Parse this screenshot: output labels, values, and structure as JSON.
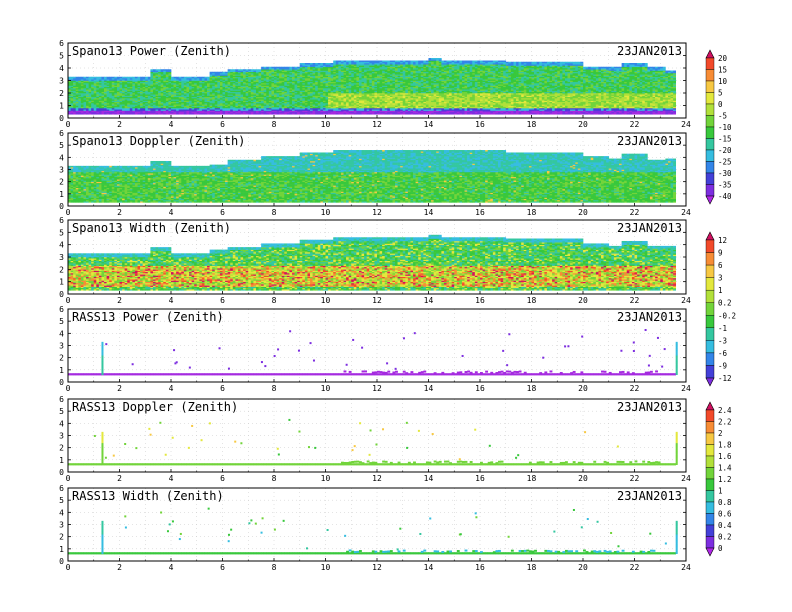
{
  "chart_data": [
    {
      "type": "heatmap",
      "title": "Spano13 Power (Zenith)",
      "date": "23JAN2013",
      "xlim": [
        0,
        24
      ],
      "ylim": [
        0,
        6
      ],
      "x_ticks": [
        "0",
        "2",
        "4",
        "6",
        "8",
        "10",
        "12",
        "14",
        "16",
        "18",
        "20",
        "22",
        "24"
      ],
      "y_ticks": [
        "0",
        "1",
        "2",
        "3",
        "4",
        "5",
        "6"
      ],
      "grid": true,
      "colorbar": "power",
      "field": "power",
      "top_profile": [
        [
          0,
          3.2
        ],
        [
          3.2,
          3.9
        ],
        [
          4.0,
          3.2
        ],
        [
          5.5,
          3.6
        ],
        [
          6.2,
          3.9
        ],
        [
          7.5,
          4.1
        ],
        [
          9.0,
          4.3
        ],
        [
          10.3,
          4.5
        ],
        [
          13.5,
          4.5
        ],
        [
          14.0,
          4.8
        ],
        [
          14.5,
          4.5
        ],
        [
          17.0,
          4.4
        ],
        [
          20.0,
          4.1
        ],
        [
          21.0,
          4.0
        ],
        [
          21.5,
          4.3
        ],
        [
          22.5,
          4.0
        ],
        [
          23.2,
          3.8
        ],
        [
          23.8,
          3.8
        ]
      ]
    },
    {
      "type": "heatmap",
      "title": "Spano13 Doppler (Zenith)",
      "date": "23JAN2013",
      "xlim": [
        0,
        24
      ],
      "ylim": [
        0,
        6
      ],
      "x_ticks": [
        "0",
        "2",
        "4",
        "6",
        "8",
        "10",
        "12",
        "14",
        "16",
        "18",
        "20",
        "22",
        "24"
      ],
      "y_ticks": [
        "0",
        "1",
        "2",
        "3",
        "4",
        "5",
        "6"
      ],
      "grid": true,
      "colorbar": "power",
      "field": "doppler",
      "top_profile": [
        [
          0,
          3.2
        ],
        [
          3.2,
          3.6
        ],
        [
          4.0,
          3.2
        ],
        [
          5.5,
          3.4
        ],
        [
          6.2,
          3.7
        ],
        [
          7.5,
          4.1
        ],
        [
          9.0,
          4.3
        ],
        [
          10.3,
          4.5
        ],
        [
          13.5,
          4.5
        ],
        [
          14.0,
          4.6
        ],
        [
          14.5,
          4.5
        ],
        [
          17.0,
          4.3
        ],
        [
          20.0,
          4.1
        ],
        [
          21.0,
          3.9
        ],
        [
          21.5,
          4.2
        ],
        [
          22.5,
          3.8
        ],
        [
          23.2,
          3.9
        ],
        [
          23.8,
          3.9
        ]
      ]
    },
    {
      "type": "heatmap",
      "title": "Spano13 Width (Zenith)",
      "date": "23JAN2013",
      "xlim": [
        0,
        24
      ],
      "ylim": [
        0,
        6
      ],
      "x_ticks": [
        "0",
        "2",
        "4",
        "6",
        "8",
        "10",
        "12",
        "14",
        "16",
        "18",
        "20",
        "22",
        "24"
      ],
      "y_ticks": [
        "0",
        "1",
        "2",
        "3",
        "4",
        "5",
        "6"
      ],
      "grid": true,
      "colorbar": "width",
      "field": "width",
      "top_profile": [
        [
          0,
          3.2
        ],
        [
          3.2,
          3.7
        ],
        [
          4.0,
          3.2
        ],
        [
          5.5,
          3.5
        ],
        [
          6.2,
          3.8
        ],
        [
          7.5,
          4.1
        ],
        [
          9.0,
          4.3
        ],
        [
          10.3,
          4.5
        ],
        [
          13.5,
          4.5
        ],
        [
          14.0,
          4.7
        ],
        [
          14.5,
          4.5
        ],
        [
          17.0,
          4.4
        ],
        [
          20.0,
          4.1
        ],
        [
          21.0,
          3.9
        ],
        [
          21.5,
          4.2
        ],
        [
          22.5,
          3.9
        ],
        [
          23.2,
          3.9
        ],
        [
          23.8,
          3.9
        ]
      ]
    },
    {
      "type": "scatter",
      "title": "RASS13 Power (Zenith)",
      "date": "23JAN2013",
      "xlim": [
        0,
        24
      ],
      "ylim": [
        0,
        6
      ],
      "x_ticks": [
        "0",
        "2",
        "4",
        "6",
        "8",
        "10",
        "12",
        "14",
        "16",
        "18",
        "20",
        "22",
        "24"
      ],
      "y_ticks": [
        "0",
        "1",
        "2",
        "3",
        "4",
        "5",
        "6"
      ],
      "grid": true,
      "colorbar": "width",
      "field": "rass_power",
      "baseline_height": 0.6,
      "spikes": [
        1.3,
        23.6
      ]
    },
    {
      "type": "scatter",
      "title": "RASS13 Doppler (Zenith)",
      "date": "23JAN2013",
      "xlim": [
        0,
        24
      ],
      "ylim": [
        0,
        6
      ],
      "x_ticks": [
        "0",
        "2",
        "4",
        "6",
        "8",
        "10",
        "12",
        "14",
        "16",
        "18",
        "20",
        "22",
        "24"
      ],
      "y_ticks": [
        "0",
        "1",
        "2",
        "3",
        "4",
        "5",
        "6"
      ],
      "grid": true,
      "colorbar": "rass",
      "field": "rass_doppler",
      "baseline_height": 0.6,
      "spikes": [
        1.3,
        23.6
      ]
    },
    {
      "type": "scatter",
      "title": "RASS13 Width (Zenith)",
      "date": "23JAN2013",
      "xlim": [
        0,
        24
      ],
      "ylim": [
        0,
        6
      ],
      "x_ticks": [
        "0",
        "2",
        "4",
        "6",
        "8",
        "10",
        "12",
        "14",
        "16",
        "18",
        "20",
        "22",
        "24"
      ],
      "y_ticks": [
        "0",
        "1",
        "2",
        "3",
        "4",
        "5",
        "6"
      ],
      "grid": true,
      "colorbar": "rass",
      "field": "rass_width",
      "baseline_height": 0.6,
      "spikes": [
        1.3,
        23.6
      ]
    }
  ],
  "colorbars": {
    "power": {
      "labels": [
        "20",
        "15",
        "10",
        "5",
        "0",
        "-5",
        "-10",
        "-15",
        "-20",
        "-25",
        "-30",
        "-35",
        "-40"
      ],
      "colors": [
        "#d01060",
        "#f24a2a",
        "#f78c35",
        "#f7c843",
        "#e3e83d",
        "#b2e03a",
        "#72d43a",
        "#38c83c",
        "#34c7a0",
        "#35bde0",
        "#3385e8",
        "#4340d8",
        "#7d2ee0",
        "#b026e8"
      ]
    },
    "width": {
      "labels": [
        "12",
        "9",
        "6",
        "3",
        "1",
        "0.2",
        "-0.2",
        "-1",
        "-3",
        "-6",
        "-9",
        "-12"
      ],
      "colors": [
        "#d01060",
        "#f24a2a",
        "#f78c35",
        "#f7c843",
        "#e3e83d",
        "#b2e03a",
        "#72d43a",
        "#38c83c",
        "#34c7a0",
        "#35bde0",
        "#3385e8",
        "#4340d8",
        "#7d2ee0"
      ]
    },
    "rass": {
      "labels": [
        "2.4",
        "2.2",
        "2",
        "1.8",
        "1.6",
        "1.4",
        "1.2",
        "1",
        "0.8",
        "0.6",
        "0.4",
        "0.2",
        "0"
      ],
      "colors": [
        "#d01060",
        "#f24a2a",
        "#f78c35",
        "#f7c843",
        "#e3e83d",
        "#b2e03a",
        "#72d43a",
        "#38c83c",
        "#34c7a0",
        "#35bde0",
        "#3385e8",
        "#4340d8",
        "#7d2ee0",
        "#b026e8"
      ]
    }
  }
}
